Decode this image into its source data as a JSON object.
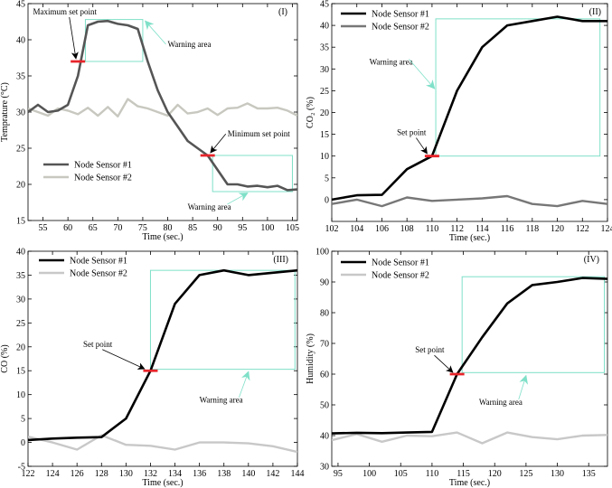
{
  "chart_data": [
    {
      "id": "I",
      "type": "line",
      "panel_label": "(I)",
      "xlabel": "Time (sec.)",
      "ylabel": "Temprature (°C)",
      "xlim": [
        52,
        106
      ],
      "ylim": [
        15,
        45
      ],
      "xticks": [
        55,
        60,
        65,
        70,
        75,
        80,
        85,
        90,
        95,
        100,
        105
      ],
      "yticks": [
        15,
        20,
        25,
        30,
        35,
        40,
        45
      ],
      "legend_position": "bottom-left",
      "series": [
        {
          "name": "Node Sensor #1",
          "color": "#555555",
          "x": [
            52,
            54,
            56,
            58,
            60,
            62,
            64,
            66,
            68,
            70,
            72,
            74,
            76,
            78,
            80,
            82,
            84,
            86,
            88,
            90,
            92,
            94,
            96,
            98,
            100,
            102,
            104,
            106
          ],
          "y": [
            30,
            31,
            30,
            30.2,
            31,
            35,
            42,
            42.5,
            42.6,
            42.2,
            42,
            41.5,
            37,
            33,
            30,
            28,
            26,
            25,
            24,
            22,
            20,
            20,
            19.7,
            19.8,
            19.6,
            19.8,
            19.2,
            19.3
          ]
        },
        {
          "name": "Node Sensor #2",
          "color": "#c8c8c0",
          "x": [
            52,
            54,
            56,
            58,
            60,
            62,
            64,
            66,
            68,
            70,
            72,
            74,
            76,
            78,
            80,
            82,
            84,
            86,
            88,
            90,
            92,
            94,
            96,
            98,
            100,
            102,
            104,
            106
          ],
          "y": [
            30.5,
            30,
            29.5,
            30.5,
            30.2,
            29.7,
            30.6,
            29.5,
            30.7,
            29.4,
            31.8,
            30.8,
            30.5,
            30,
            29.5,
            31,
            29.8,
            30,
            30.5,
            29.6,
            30.5,
            30.6,
            31.2,
            30.5,
            30.5,
            30.6,
            30.2,
            29.5
          ]
        }
      ],
      "set_points": [
        {
          "x": 62,
          "y": 37
        },
        {
          "x": 88,
          "y": 24
        }
      ],
      "warning_boxes": [
        {
          "x0": 63.5,
          "x1": 75,
          "y0": 37,
          "y1": 42.8
        },
        {
          "x0": 89,
          "x1": 105,
          "y0": 19,
          "y1": 24
        }
      ],
      "annotations": [
        {
          "text": "Maximum set point",
          "tx": 53,
          "ty": 43.5,
          "ax": 61.6,
          "ay": 37.4
        },
        {
          "text": "Warning area",
          "tx": 80,
          "ty": 39,
          "ax": 75.5,
          "ay": 42.6
        },
        {
          "text": "Minimum set point",
          "tx": 92,
          "ty": 26.6,
          "ax": 88.6,
          "ay": 24.4
        },
        {
          "text": "Warning area",
          "tx": 84,
          "ty": 16.5,
          "ax": 96,
          "ay": 18.8
        }
      ]
    },
    {
      "id": "II",
      "type": "line",
      "panel_label": "(II)",
      "xlabel": "Time (sec.)",
      "ylabel": "CO₂ (%)",
      "xlim": [
        102,
        124
      ],
      "ylim": [
        -5,
        45
      ],
      "xticks": [
        102,
        104,
        106,
        108,
        110,
        112,
        114,
        116,
        118,
        120,
        122,
        124
      ],
      "yticks": [
        0,
        5,
        10,
        15,
        20,
        25,
        30,
        35,
        40,
        45
      ],
      "legend_position": "top-left",
      "series": [
        {
          "name": "Node Sensor #1",
          "color": "#000000",
          "x": [
            102,
            104,
            106,
            108,
            110,
            112,
            114,
            116,
            118,
            120,
            122,
            124
          ],
          "y": [
            0,
            1,
            1.1,
            7,
            10,
            25,
            35,
            40,
            41,
            42,
            41,
            41
          ]
        },
        {
          "name": "Node Sensor #2",
          "color": "#777777",
          "x": [
            102,
            104,
            106,
            108,
            110,
            112,
            114,
            116,
            118,
            120,
            122,
            124
          ],
          "y": [
            -1,
            0,
            -1.5,
            0.5,
            -0.3,
            0,
            0.3,
            0.8,
            -1,
            -1.5,
            -0.3,
            -1
          ]
        }
      ],
      "set_points": [
        {
          "x": 110,
          "y": 10
        }
      ],
      "warning_boxes": [
        {
          "x0": 110.3,
          "x1": 123.4,
          "y0": 10,
          "y1": 41.5
        }
      ],
      "annotations": [
        {
          "text": "Warning area",
          "tx": 105,
          "ty": 31,
          "ax": 110.2,
          "ay": 25.5
        },
        {
          "text": "Set point",
          "tx": 107.2,
          "ty": 14.8,
          "ax": 109.6,
          "ay": 10.6
        }
      ]
    },
    {
      "id": "III",
      "type": "line",
      "panel_label": "(III)",
      "xlabel": "Time (sec.)",
      "ylabel": "CO (%)",
      "xlim": [
        122,
        144
      ],
      "ylim": [
        -5,
        40
      ],
      "xticks": [
        122,
        124,
        126,
        128,
        130,
        132,
        134,
        136,
        138,
        140,
        142,
        144
      ],
      "yticks": [
        -5,
        0,
        5,
        10,
        15,
        20,
        25,
        30,
        35,
        40
      ],
      "legend_position": "top-left",
      "series": [
        {
          "name": "Node Sensor #1",
          "color": "#000000",
          "x": [
            122,
            124,
            126,
            128,
            130,
            132,
            134,
            136,
            138,
            140,
            142,
            144
          ],
          "y": [
            0.5,
            0.8,
            1,
            1.1,
            5,
            15,
            29,
            35,
            36,
            35,
            35.5,
            36
          ]
        },
        {
          "name": "Node Sensor #2",
          "color": "#c8c8c8",
          "x": [
            122,
            124,
            126,
            128,
            130,
            132,
            134,
            136,
            138,
            140,
            142,
            144
          ],
          "y": [
            1.2,
            0,
            -1.5,
            1.5,
            -0.5,
            -0.7,
            -1.5,
            0,
            0,
            -0.2,
            -0.8,
            -2
          ]
        }
      ],
      "set_points": [
        {
          "x": 132,
          "y": 15
        }
      ],
      "warning_boxes": [
        {
          "x0": 132,
          "x1": 143.8,
          "y0": 15.3,
          "y1": 36
        }
      ],
      "annotations": [
        {
          "text": "Set point",
          "tx": 126.5,
          "ty": 20,
          "ax": 131.5,
          "ay": 15.4
        },
        {
          "text": "Warning area",
          "tx": 136,
          "ty": 8.3,
          "ax": 140,
          "ay": 14.8
        }
      ]
    },
    {
      "id": "IV",
      "type": "line",
      "panel_label": "(IV)",
      "xlabel": "Time (sec.)",
      "ylabel": "Humidity (%)",
      "xlim": [
        94,
        138
      ],
      "ylim": [
        30,
        100
      ],
      "xticks": [
        95,
        100,
        105,
        110,
        115,
        120,
        125,
        130,
        135
      ],
      "yticks": [
        30,
        40,
        50,
        60,
        70,
        80,
        90,
        100
      ],
      "legend_position": "top-left",
      "series": [
        {
          "name": "Node Sensor #1",
          "color": "#000000",
          "x": [
            94,
            98,
            102,
            106,
            110,
            114,
            118,
            122,
            126,
            130,
            134,
            138
          ],
          "y": [
            40.7,
            40.9,
            40.8,
            41,
            41.2,
            60,
            72,
            83,
            89,
            90,
            91.3,
            91
          ]
        },
        {
          "name": "Node Sensor #2",
          "color": "#c8c8c8",
          "x": [
            94,
            98,
            102,
            106,
            110,
            114,
            118,
            122,
            126,
            130,
            134,
            138
          ],
          "y": [
            38.5,
            40.5,
            38,
            40,
            39.8,
            41,
            37.5,
            41,
            39.5,
            38.8,
            40,
            40.2
          ]
        }
      ],
      "set_points": [
        {
          "x": 114,
          "y": 60
        }
      ],
      "warning_boxes": [
        {
          "x0": 114.8,
          "x1": 137.5,
          "y0": 60.5,
          "y1": 91.7
        }
      ],
      "annotations": [
        {
          "text": "Set point",
          "tx": 107.3,
          "ty": 67,
          "ax": 113.3,
          "ay": 60.6
        },
        {
          "text": "Warning area",
          "tx": 117.5,
          "ty": 50,
          "ax": 125,
          "ay": 59.5
        }
      ]
    }
  ],
  "colors": {
    "warning_box": "#7fe0c8",
    "set_point": "#e8242a",
    "arrow": "#000000",
    "warning_arrow": "#7fe0c8"
  }
}
